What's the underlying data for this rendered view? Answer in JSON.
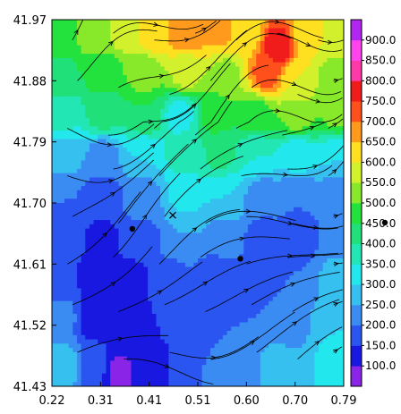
{
  "chart_data": {
    "type": "heatmap",
    "title": "",
    "xlabel": "",
    "ylabel": "",
    "xlim": [
      0.22,
      0.79
    ],
    "ylim": [
      41.43,
      41.97
    ],
    "x_ticks": [
      "0.22",
      "0.31",
      "0.41",
      "0.51",
      "0.60",
      "0.70",
      "0.79"
    ],
    "y_ticks": [
      "41.97",
      "41.88",
      "41.79",
      "41.70",
      "41.61",
      "41.52",
      "41.43"
    ],
    "colorbar": {
      "levels": [
        "100.0",
        "150.0",
        "200.0",
        "250.0",
        "300.0",
        "350.0",
        "400.0",
        "450.0",
        "500.0",
        "550.0",
        "600.0",
        "650.0",
        "700.0",
        "750.0",
        "800.0",
        "850.0",
        "900.0"
      ],
      "colors": [
        "#8a24e6",
        "#1818e0",
        "#2b55f0",
        "#3b8cf2",
        "#36c0f0",
        "#22e8ee",
        "#22e6b4",
        "#20e07a",
        "#24e23e",
        "#88e82a",
        "#d2f02c",
        "#ffe020",
        "#ff9a1c",
        "#ff501c",
        "#f01c1c",
        "#ff3aa8",
        "#ff44ee",
        "#b226f2"
      ]
    },
    "markers": [
      {
        "type": "dot",
        "x": 0.377,
        "y": 41.662
      },
      {
        "type": "dot",
        "x": 0.588,
        "y": 41.618
      },
      {
        "type": "cross",
        "x": 0.456,
        "y": 41.682
      }
    ],
    "field_samples": [
      {
        "x": 0.24,
        "y": 41.95,
        "v": 490
      },
      {
        "x": 0.3,
        "y": 41.95,
        "v": 520
      },
      {
        "x": 0.36,
        "y": 41.95,
        "v": 560
      },
      {
        "x": 0.42,
        "y": 41.95,
        "v": 640
      },
      {
        "x": 0.48,
        "y": 41.95,
        "v": 700
      },
      {
        "x": 0.55,
        "y": 41.95,
        "v": 660
      },
      {
        "x": 0.6,
        "y": 41.95,
        "v": 610
      },
      {
        "x": 0.66,
        "y": 41.93,
        "v": 780
      },
      {
        "x": 0.72,
        "y": 41.95,
        "v": 620
      },
      {
        "x": 0.78,
        "y": 41.95,
        "v": 560
      },
      {
        "x": 0.24,
        "y": 41.89,
        "v": 440
      },
      {
        "x": 0.32,
        "y": 41.89,
        "v": 470
      },
      {
        "x": 0.4,
        "y": 41.89,
        "v": 520
      },
      {
        "x": 0.48,
        "y": 41.89,
        "v": 560
      },
      {
        "x": 0.56,
        "y": 41.89,
        "v": 540
      },
      {
        "x": 0.64,
        "y": 41.89,
        "v": 720
      },
      {
        "x": 0.7,
        "y": 41.88,
        "v": 600
      },
      {
        "x": 0.77,
        "y": 41.88,
        "v": 530
      },
      {
        "x": 0.24,
        "y": 41.83,
        "v": 360
      },
      {
        "x": 0.32,
        "y": 41.83,
        "v": 420
      },
      {
        "x": 0.4,
        "y": 41.83,
        "v": 450
      },
      {
        "x": 0.47,
        "y": 41.83,
        "v": 330
      },
      {
        "x": 0.54,
        "y": 41.83,
        "v": 470
      },
      {
        "x": 0.62,
        "y": 41.83,
        "v": 480
      },
      {
        "x": 0.7,
        "y": 41.83,
        "v": 520
      },
      {
        "x": 0.78,
        "y": 41.83,
        "v": 510
      },
      {
        "x": 0.24,
        "y": 41.77,
        "v": 270
      },
      {
        "x": 0.32,
        "y": 41.77,
        "v": 230
      },
      {
        "x": 0.4,
        "y": 41.77,
        "v": 300
      },
      {
        "x": 0.48,
        "y": 41.77,
        "v": 380
      },
      {
        "x": 0.55,
        "y": 41.77,
        "v": 410
      },
      {
        "x": 0.62,
        "y": 41.77,
        "v": 350
      },
      {
        "x": 0.7,
        "y": 41.77,
        "v": 320
      },
      {
        "x": 0.78,
        "y": 41.77,
        "v": 300
      },
      {
        "x": 0.24,
        "y": 41.71,
        "v": 200
      },
      {
        "x": 0.32,
        "y": 41.71,
        "v": 170
      },
      {
        "x": 0.4,
        "y": 41.71,
        "v": 230
      },
      {
        "x": 0.48,
        "y": 41.71,
        "v": 310
      },
      {
        "x": 0.56,
        "y": 41.71,
        "v": 300
      },
      {
        "x": 0.63,
        "y": 41.71,
        "v": 220
      },
      {
        "x": 0.7,
        "y": 41.71,
        "v": 200
      },
      {
        "x": 0.78,
        "y": 41.71,
        "v": 210
      },
      {
        "x": 0.24,
        "y": 41.65,
        "v": 170
      },
      {
        "x": 0.32,
        "y": 41.65,
        "v": 140
      },
      {
        "x": 0.4,
        "y": 41.65,
        "v": 190
      },
      {
        "x": 0.48,
        "y": 41.65,
        "v": 250
      },
      {
        "x": 0.56,
        "y": 41.65,
        "v": 230
      },
      {
        "x": 0.63,
        "y": 41.65,
        "v": 180
      },
      {
        "x": 0.7,
        "y": 41.65,
        "v": 170
      },
      {
        "x": 0.78,
        "y": 41.65,
        "v": 210
      },
      {
        "x": 0.24,
        "y": 41.59,
        "v": 160
      },
      {
        "x": 0.31,
        "y": 41.59,
        "v": 120
      },
      {
        "x": 0.38,
        "y": 41.59,
        "v": 140
      },
      {
        "x": 0.46,
        "y": 41.59,
        "v": 190
      },
      {
        "x": 0.54,
        "y": 41.59,
        "v": 160
      },
      {
        "x": 0.62,
        "y": 41.59,
        "v": 150
      },
      {
        "x": 0.7,
        "y": 41.59,
        "v": 200
      },
      {
        "x": 0.78,
        "y": 41.59,
        "v": 280
      },
      {
        "x": 0.24,
        "y": 41.53,
        "v": 220
      },
      {
        "x": 0.3,
        "y": 41.53,
        "v": 130
      },
      {
        "x": 0.36,
        "y": 41.53,
        "v": 110
      },
      {
        "x": 0.44,
        "y": 41.53,
        "v": 150
      },
      {
        "x": 0.52,
        "y": 41.53,
        "v": 180
      },
      {
        "x": 0.6,
        "y": 41.53,
        "v": 200
      },
      {
        "x": 0.68,
        "y": 41.53,
        "v": 230
      },
      {
        "x": 0.78,
        "y": 41.53,
        "v": 300
      },
      {
        "x": 0.24,
        "y": 41.46,
        "v": 290
      },
      {
        "x": 0.3,
        "y": 41.46,
        "v": 180
      },
      {
        "x": 0.35,
        "y": 41.45,
        "v": 90
      },
      {
        "x": 0.42,
        "y": 41.46,
        "v": 140
      },
      {
        "x": 0.5,
        "y": 41.46,
        "v": 200
      },
      {
        "x": 0.58,
        "y": 41.46,
        "v": 230
      },
      {
        "x": 0.66,
        "y": 41.46,
        "v": 260
      },
      {
        "x": 0.78,
        "y": 41.46,
        "v": 320
      }
    ],
    "streamline_seeds": [
      {
        "x": 0.26,
        "y": 41.94
      },
      {
        "x": 0.34,
        "y": 41.95
      },
      {
        "x": 0.42,
        "y": 41.94
      },
      {
        "x": 0.5,
        "y": 41.95
      },
      {
        "x": 0.58,
        "y": 41.94
      },
      {
        "x": 0.66,
        "y": 41.95
      },
      {
        "x": 0.74,
        "y": 41.94
      },
      {
        "x": 0.27,
        "y": 41.88
      },
      {
        "x": 0.35,
        "y": 41.87
      },
      {
        "x": 0.45,
        "y": 41.86
      },
      {
        "x": 0.53,
        "y": 41.88
      },
      {
        "x": 0.61,
        "y": 41.87
      },
      {
        "x": 0.7,
        "y": 41.86
      },
      {
        "x": 0.77,
        "y": 41.88
      },
      {
        "x": 0.25,
        "y": 41.81
      },
      {
        "x": 0.33,
        "y": 41.8
      },
      {
        "x": 0.42,
        "y": 41.81
      },
      {
        "x": 0.5,
        "y": 41.8
      },
      {
        "x": 0.58,
        "y": 41.81
      },
      {
        "x": 0.67,
        "y": 41.8
      },
      {
        "x": 0.76,
        "y": 41.81
      },
      {
        "x": 0.25,
        "y": 41.74
      },
      {
        "x": 0.34,
        "y": 41.75
      },
      {
        "x": 0.43,
        "y": 41.74
      },
      {
        "x": 0.51,
        "y": 41.75
      },
      {
        "x": 0.59,
        "y": 41.74
      },
      {
        "x": 0.68,
        "y": 41.75
      },
      {
        "x": 0.76,
        "y": 41.74
      },
      {
        "x": 0.26,
        "y": 41.68
      },
      {
        "x": 0.35,
        "y": 41.67
      },
      {
        "x": 0.44,
        "y": 41.68
      },
      {
        "x": 0.52,
        "y": 41.67
      },
      {
        "x": 0.6,
        "y": 41.68
      },
      {
        "x": 0.69,
        "y": 41.67
      },
      {
        "x": 0.77,
        "y": 41.68
      },
      {
        "x": 0.25,
        "y": 41.61
      },
      {
        "x": 0.34,
        "y": 41.62
      },
      {
        "x": 0.43,
        "y": 41.61
      },
      {
        "x": 0.51,
        "y": 41.62
      },
      {
        "x": 0.6,
        "y": 41.61
      },
      {
        "x": 0.68,
        "y": 41.62
      },
      {
        "x": 0.77,
        "y": 41.61
      },
      {
        "x": 0.26,
        "y": 41.55
      },
      {
        "x": 0.35,
        "y": 41.54
      },
      {
        "x": 0.44,
        "y": 41.55
      },
      {
        "x": 0.52,
        "y": 41.54
      },
      {
        "x": 0.61,
        "y": 41.55
      },
      {
        "x": 0.69,
        "y": 41.54
      },
      {
        "x": 0.77,
        "y": 41.55
      },
      {
        "x": 0.27,
        "y": 41.48
      },
      {
        "x": 0.36,
        "y": 41.47
      },
      {
        "x": 0.45,
        "y": 41.48
      },
      {
        "x": 0.53,
        "y": 41.47
      },
      {
        "x": 0.62,
        "y": 41.48
      },
      {
        "x": 0.7,
        "y": 41.47
      },
      {
        "x": 0.77,
        "y": 41.48
      }
    ]
  }
}
